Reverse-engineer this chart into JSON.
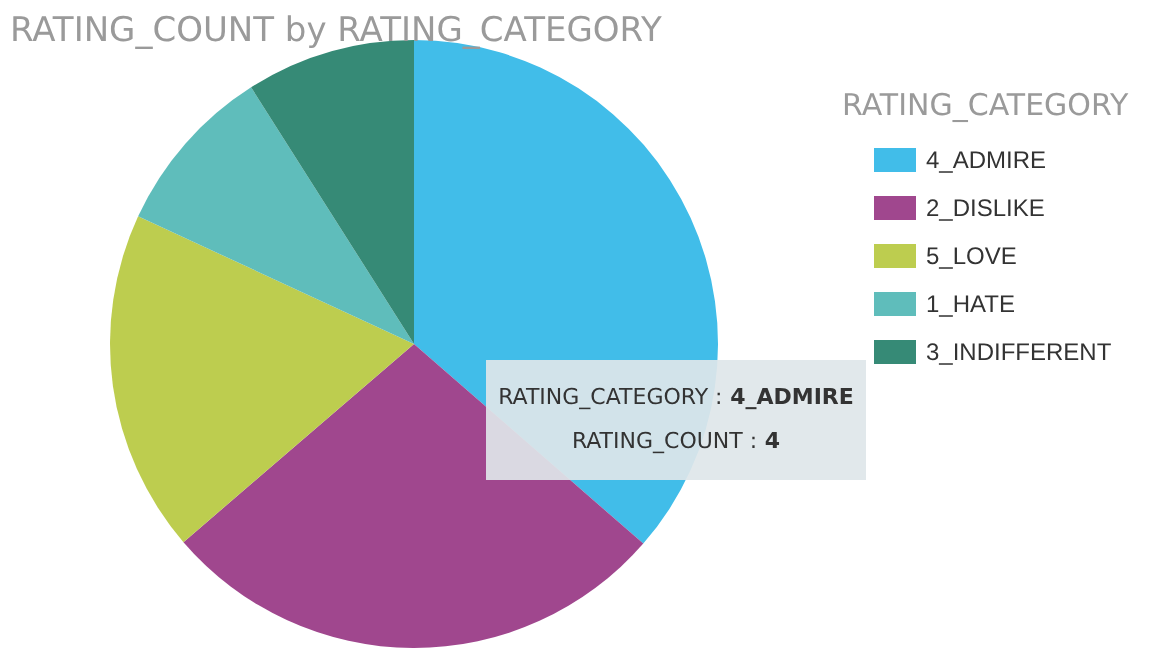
{
  "chart_data": {
    "type": "pie",
    "title": "RATING_COUNT by RATING_CATEGORY",
    "legend_title": "RATING_CATEGORY",
    "categories": [
      "4_ADMIRE",
      "2_DISLIKE",
      "5_LOVE",
      "1_HATE",
      "3_INDIFFERENT"
    ],
    "values": [
      36.4,
      27.3,
      18.2,
      9.1,
      9.0
    ],
    "colors": [
      "#41bde9",
      "#a0478e",
      "#bdcd4f",
      "#5fbdbb",
      "#368a76"
    ],
    "legend": "right",
    "annotations": [
      "RATING_CATEGORY : 4_ADMIRE",
      "RATING_COUNT : 4"
    ]
  }
}
